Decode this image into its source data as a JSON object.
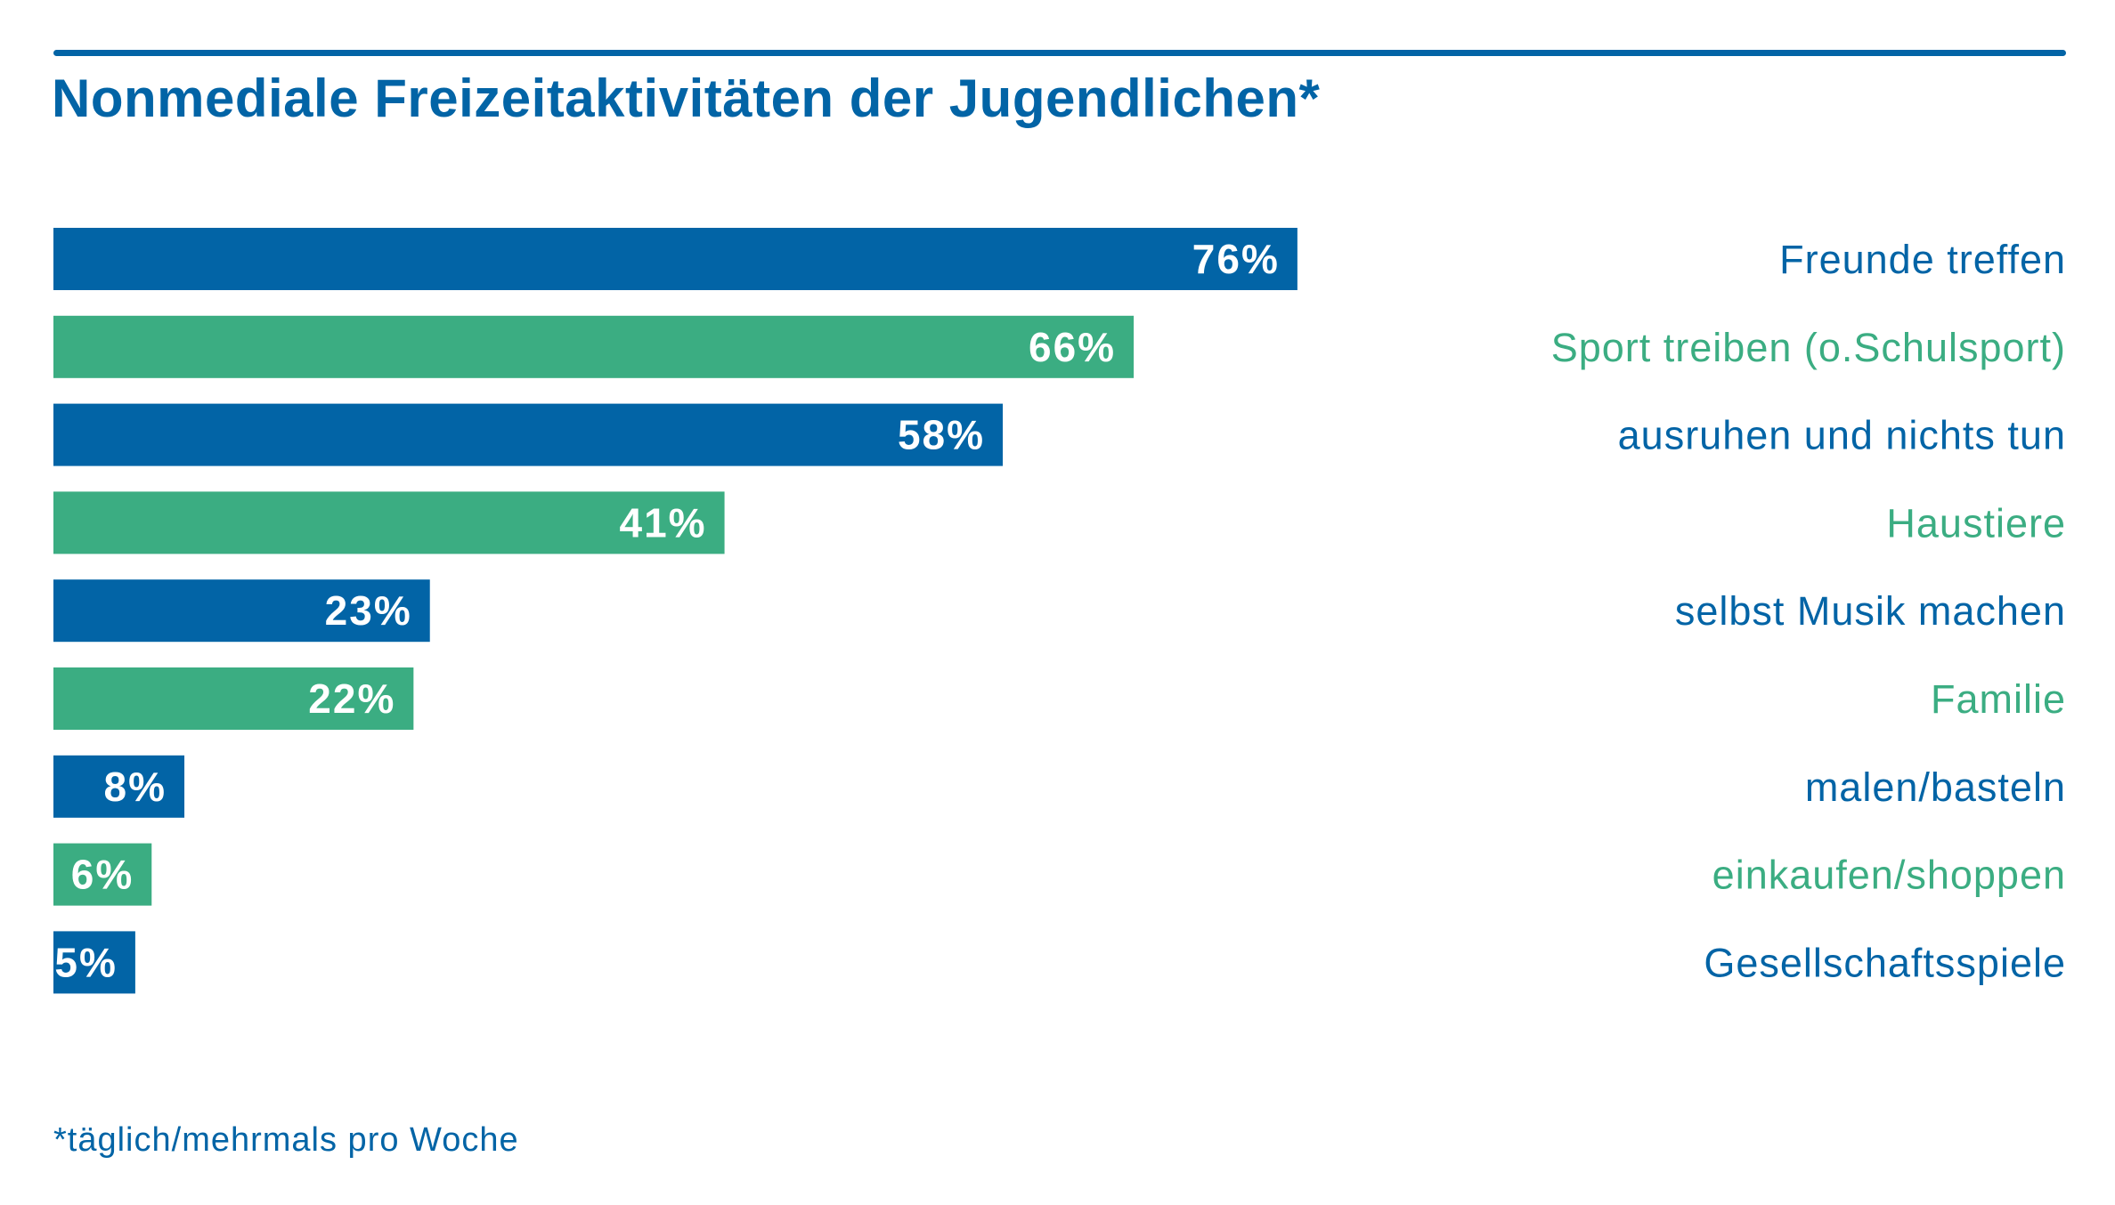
{
  "colors": {
    "blue": "#0264A6",
    "green": "#3BAD82"
  },
  "header": {
    "title": "Nonmediale Freizeitaktivitäten der Jugendlichen*"
  },
  "footnote": "*täglich/mehrmals pro Woche",
  "chart_data": {
    "type": "bar",
    "orientation": "horizontal",
    "title": "Nonmediale Freizeitaktivitäten der Jugendlichen*",
    "xlabel": "",
    "ylabel": "",
    "unit": "%",
    "xlim": [
      0,
      100
    ],
    "grid": false,
    "legend": "none",
    "categories": [
      "Freunde treffen",
      "Sport treiben (o.Schulsport)",
      "ausruhen und nichts tun",
      "Haustiere",
      "selbst Musik machen",
      "Familie",
      "malen/basteln",
      "einkaufen/shoppen",
      "Gesellschaftsspiele"
    ],
    "values": [
      76,
      66,
      58,
      41,
      23,
      22,
      8,
      6,
      5
    ],
    "data_labels": [
      "76%",
      "66%",
      "58%",
      "41%",
      "23%",
      "22%",
      "8%",
      "6%",
      "5%"
    ],
    "bar_colors": [
      "#0264A6",
      "#3BAD82",
      "#0264A6",
      "#3BAD82",
      "#0264A6",
      "#3BAD82",
      "#0264A6",
      "#3BAD82",
      "#0264A6"
    ],
    "annotations": [
      "*täglich/mehrmals pro Woche"
    ]
  }
}
